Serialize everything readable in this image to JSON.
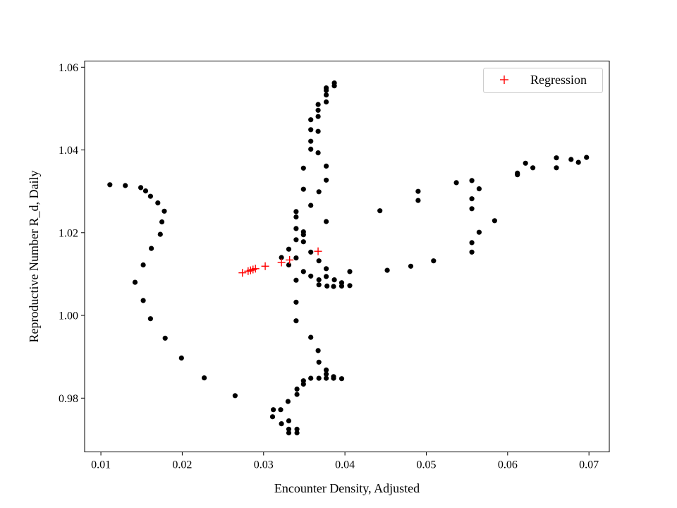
{
  "chart_data": {
    "type": "scatter",
    "xlabel": "Encounter Density, Adjusted",
    "ylabel": "Reproductive Number R_d, Daily",
    "xlim": [
      0.008,
      0.0725
    ],
    "ylim": [
      0.967,
      1.0615
    ],
    "x_ticks": [
      0.01,
      0.02,
      0.03,
      0.04,
      0.05,
      0.06,
      0.07
    ],
    "x_tick_labels": [
      "0.01",
      "0.02",
      "0.03",
      "0.04",
      "0.05",
      "0.06",
      "0.07"
    ],
    "y_ticks": [
      0.98,
      1.0,
      1.02,
      1.04,
      1.06
    ],
    "y_tick_labels": [
      "0.98",
      "1.00",
      "1.02",
      "1.04",
      "1.06"
    ],
    "grid": false,
    "legend": {
      "position": "top-right",
      "entries": [
        "Regression"
      ]
    },
    "colors": {
      "observed": "#000000",
      "regression": "#ff0000"
    },
    "series": [
      {
        "marker": "circle",
        "color": "#000000",
        "points": [
          [
            0.0111,
            1.0316
          ],
          [
            0.013,
            1.0314
          ],
          [
            0.0149,
            1.0309
          ],
          [
            0.0155,
            1.0301
          ],
          [
            0.0161,
            1.0288
          ],
          [
            0.017,
            1.0272
          ],
          [
            0.0178,
            1.0252
          ],
          [
            0.0175,
            1.0226
          ],
          [
            0.0173,
            1.0196
          ],
          [
            0.0162,
            1.0162
          ],
          [
            0.0152,
            1.0122
          ],
          [
            0.0142,
            1.008
          ],
          [
            0.0152,
            1.0036
          ],
          [
            0.0161,
            0.9992
          ],
          [
            0.0179,
            0.9945
          ],
          [
            0.0199,
            0.9897
          ],
          [
            0.0227,
            0.9849
          ],
          [
            0.0265,
            0.9806
          ],
          [
            0.0312,
            0.9772
          ],
          [
            0.0311,
            0.9755
          ],
          [
            0.0321,
            0.9772
          ],
          [
            0.033,
            0.9792
          ],
          [
            0.0322,
            0.9738
          ],
          [
            0.0331,
            0.9745
          ],
          [
            0.0331,
            0.9725
          ],
          [
            0.0341,
            0.9725
          ],
          [
            0.0331,
            0.9716
          ],
          [
            0.0341,
            0.9716
          ],
          [
            0.0341,
            0.9809
          ],
          [
            0.0341,
            0.9822
          ],
          [
            0.0349,
            0.9834
          ],
          [
            0.0349,
            0.9842
          ],
          [
            0.0358,
            0.9848
          ],
          [
            0.0368,
            0.9848
          ],
          [
            0.0377,
            0.9848
          ],
          [
            0.0386,
            0.9848
          ],
          [
            0.0386,
            0.9852
          ],
          [
            0.0396,
            0.9847
          ],
          [
            0.0377,
            0.9858
          ],
          [
            0.0377,
            0.9868
          ],
          [
            0.0368,
            0.9887
          ],
          [
            0.0367,
            0.9915
          ],
          [
            0.0358,
            0.9947
          ],
          [
            0.034,
            0.9987
          ],
          [
            0.034,
            1.0032
          ],
          [
            0.034,
            1.0085
          ],
          [
            0.0349,
            1.0106
          ],
          [
            0.0358,
            1.0095
          ],
          [
            0.0368,
            1.0086
          ],
          [
            0.0368,
            1.0074
          ],
          [
            0.0378,
            1.0071
          ],
          [
            0.0386,
            1.007
          ],
          [
            0.0396,
            1.0071
          ],
          [
            0.0406,
            1.0072
          ],
          [
            0.0387,
            1.0086
          ],
          [
            0.0396,
            1.0079
          ],
          [
            0.0377,
            1.0094
          ],
          [
            0.0377,
            1.0113
          ],
          [
            0.0368,
            1.0132
          ],
          [
            0.0358,
            1.0153
          ],
          [
            0.034,
            1.0139
          ],
          [
            0.0331,
            1.0122
          ],
          [
            0.0322,
            1.014
          ],
          [
            0.0331,
            1.016
          ],
          [
            0.0349,
            1.0178
          ],
          [
            0.034,
            1.0183
          ],
          [
            0.0349,
            1.0195
          ],
          [
            0.0349,
            1.0202
          ],
          [
            0.034,
            1.021
          ],
          [
            0.034,
            1.0238
          ],
          [
            0.034,
            1.0251
          ],
          [
            0.0377,
            1.0227
          ],
          [
            0.0358,
            1.0266
          ],
          [
            0.0349,
            1.0305
          ],
          [
            0.0368,
            1.0299
          ],
          [
            0.0377,
            1.0327
          ],
          [
            0.0349,
            1.0356
          ],
          [
            0.0377,
            1.0361
          ],
          [
            0.0367,
            1.0393
          ],
          [
            0.0358,
            1.0402
          ],
          [
            0.0358,
            1.0421
          ],
          [
            0.0367,
            1.0445
          ],
          [
            0.0358,
            1.0449
          ],
          [
            0.0358,
            1.0473
          ],
          [
            0.0367,
            1.0481
          ],
          [
            0.0367,
            1.0496
          ],
          [
            0.0367,
            1.051
          ],
          [
            0.0377,
            1.0516
          ],
          [
            0.0377,
            1.0533
          ],
          [
            0.0377,
            1.0544
          ],
          [
            0.0377,
            1.055
          ],
          [
            0.0387,
            1.0555
          ],
          [
            0.0387,
            1.0562
          ],
          [
            0.0406,
            1.0106
          ],
          [
            0.0443,
            1.0253
          ],
          [
            0.0452,
            1.0109
          ],
          [
            0.0481,
            1.0119
          ],
          [
            0.049,
            1.0278
          ],
          [
            0.049,
            1.03
          ],
          [
            0.0509,
            1.0132
          ],
          [
            0.0537,
            1.0321
          ],
          [
            0.0556,
            1.0326
          ],
          [
            0.0556,
            1.0282
          ],
          [
            0.0556,
            1.0258
          ],
          [
            0.0556,
            1.0176
          ],
          [
            0.0556,
            1.0153
          ],
          [
            0.0565,
            1.0201
          ],
          [
            0.0565,
            1.0306
          ],
          [
            0.0584,
            1.0229
          ],
          [
            0.0612,
            1.034
          ],
          [
            0.0612,
            1.0344
          ],
          [
            0.0622,
            1.0368
          ],
          [
            0.0631,
            1.0357
          ],
          [
            0.066,
            1.0357
          ],
          [
            0.066,
            1.0381
          ],
          [
            0.0678,
            1.0377
          ],
          [
            0.0687,
            1.037
          ],
          [
            0.0697,
            1.0382
          ]
        ]
      },
      {
        "name": "Regression",
        "marker": "plus",
        "color": "#ff0000",
        "points": [
          [
            0.0274,
            1.0103
          ],
          [
            0.0281,
            1.0107
          ],
          [
            0.0284,
            1.0109
          ],
          [
            0.0287,
            1.0111
          ],
          [
            0.029,
            1.0113
          ],
          [
            0.0302,
            1.0119
          ],
          [
            0.0322,
            1.0128
          ],
          [
            0.0332,
            1.0134
          ],
          [
            0.0367,
            1.0155
          ]
        ]
      }
    ]
  }
}
